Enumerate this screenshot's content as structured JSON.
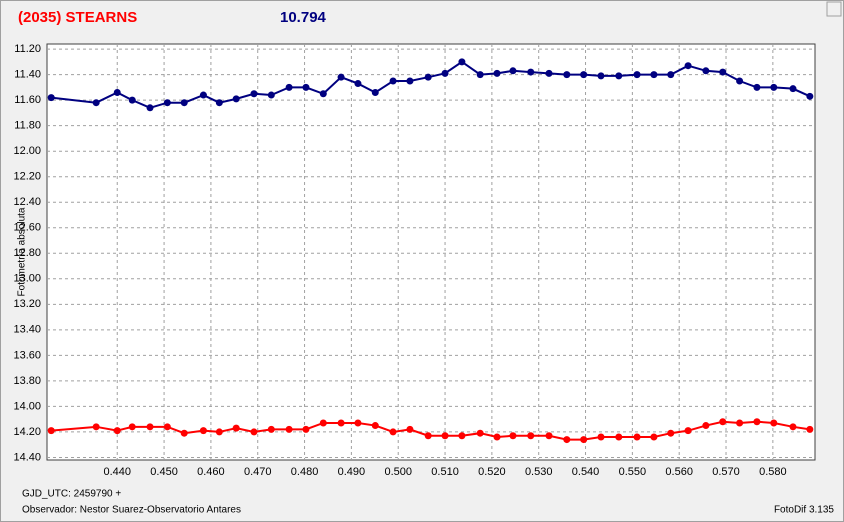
{
  "chart_data": {
    "type": "line",
    "title": "(2035) STEARNS",
    "subtitle": "10.794",
    "y_label": "Fotometría absoluta",
    "x_label": "GJD_UTC: 2459790 +",
    "observer": "Observador: Nestor Suarez-Observatorio Antares",
    "software": "FotoDif 3.135",
    "x": [
      0.4259,
      0.4355,
      0.44,
      0.4432,
      0.447,
      0.4507,
      0.4543,
      0.4584,
      0.4618,
      0.4654,
      0.4692,
      0.4729,
      0.4767,
      0.4803,
      0.484,
      0.4878,
      0.4914,
      0.4951,
      0.4989,
      0.5025,
      0.5064,
      0.51,
      0.5136,
      0.5175,
      0.5211,
      0.5245,
      0.5283,
      0.5322,
      0.536,
      0.5396,
      0.5433,
      0.5471,
      0.551,
      0.5546,
      0.5582,
      0.5619,
      0.5657,
      0.5693,
      0.5729,
      0.5766,
      0.5802,
      0.5843,
      0.5879
    ],
    "series": [
      {
        "color": "#000080",
        "values": [
          11.58,
          11.62,
          11.54,
          11.6,
          11.66,
          11.62,
          11.62,
          11.56,
          11.62,
          11.59,
          11.55,
          11.56,
          11.5,
          11.5,
          11.55,
          11.42,
          11.47,
          11.54,
          11.45,
          11.45,
          11.42,
          11.39,
          11.3,
          11.4,
          11.39,
          11.37,
          11.38,
          11.39,
          11.4,
          11.4,
          11.41,
          11.41,
          11.4,
          11.4,
          11.4,
          11.33,
          11.37,
          11.38,
          11.45,
          11.5,
          11.5,
          11.51,
          11.57
        ]
      },
      {
        "color": "#ff0000",
        "values": [
          14.19,
          14.16,
          14.19,
          14.16,
          14.16,
          14.16,
          14.21,
          14.19,
          14.2,
          14.17,
          14.2,
          14.18,
          14.18,
          14.18,
          14.13,
          14.13,
          14.13,
          14.15,
          14.2,
          14.18,
          14.23,
          14.23,
          14.23,
          14.21,
          14.24,
          14.23,
          14.23,
          14.23,
          14.26,
          14.26,
          14.24,
          14.24,
          14.24,
          14.24,
          14.21,
          14.19,
          14.15,
          14.12,
          14.13,
          14.12,
          14.13,
          14.16,
          14.18
        ]
      }
    ],
    "xlim": [
      0.425,
      0.589
    ],
    "ylim": [
      14.42,
      11.16
    ],
    "xticks": [
      {
        "value": 0.44,
        "label": "0.440"
      },
      {
        "value": 0.45,
        "label": "0.450"
      },
      {
        "value": 0.46,
        "label": "0.460"
      },
      {
        "value": 0.47,
        "label": "0.470"
      },
      {
        "value": 0.48,
        "label": "0.480"
      },
      {
        "value": 0.49,
        "label": "0.490"
      },
      {
        "value": 0.5,
        "label": "0.500"
      },
      {
        "value": 0.51,
        "label": "0.510"
      },
      {
        "value": 0.52,
        "label": "0.520"
      },
      {
        "value": 0.53,
        "label": "0.530"
      },
      {
        "value": 0.54,
        "label": "0.540"
      },
      {
        "value": 0.55,
        "label": "0.550"
      },
      {
        "value": 0.56,
        "label": "0.560"
      },
      {
        "value": 0.57,
        "label": "0.570"
      },
      {
        "value": 0.58,
        "label": "0.580"
      }
    ],
    "yticks": [
      {
        "value": 11.2,
        "label": "11.20"
      },
      {
        "value": 11.4,
        "label": "11.40"
      },
      {
        "value": 11.6,
        "label": "11.60"
      },
      {
        "value": 11.8,
        "label": "11.80"
      },
      {
        "value": 12,
        "label": "12.00"
      },
      {
        "value": 12.2,
        "label": "12.20"
      },
      {
        "value": 12.4,
        "label": "12.40"
      },
      {
        "value": 12.6,
        "label": "12.60"
      },
      {
        "value": 12.8,
        "label": "12.80"
      },
      {
        "value": 13,
        "label": "13.00"
      },
      {
        "value": 13.2,
        "label": "13.20"
      },
      {
        "value": 13.4,
        "label": "13.40"
      },
      {
        "value": 13.6,
        "label": "13.60"
      },
      {
        "value": 13.8,
        "label": "13.80"
      },
      {
        "value": 14,
        "label": "14.00"
      },
      {
        "value": 14.2,
        "label": "14.20"
      },
      {
        "value": 14.4,
        "label": "14.40"
      }
    ],
    "grid": true
  }
}
